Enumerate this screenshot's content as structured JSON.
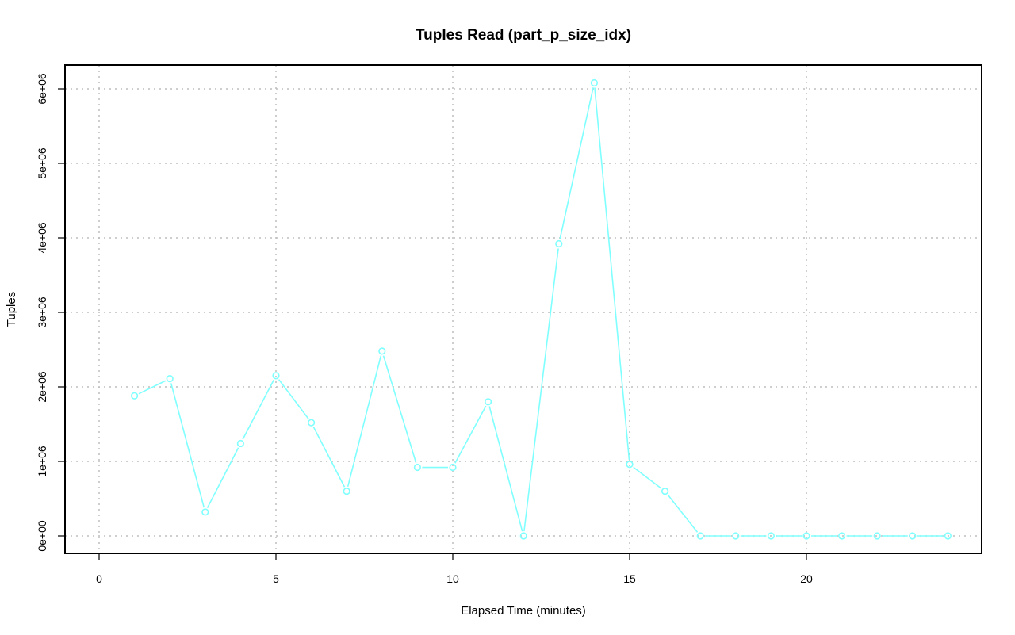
{
  "chart_data": {
    "type": "line",
    "title": "Tuples Read (part_p_size_idx)",
    "xlabel": "Elapsed Time (minutes)",
    "ylabel": "Tuples",
    "xlim": [
      0,
      24
    ],
    "ylim": [
      0,
      6000000
    ],
    "x_ticks": [
      0,
      5,
      10,
      15,
      20
    ],
    "y_ticks": [
      0,
      1000000,
      2000000,
      3000000,
      4000000,
      5000000,
      6000000
    ],
    "y_tick_labels": [
      "0e+00",
      "1e+06",
      "2e+06",
      "3e+06",
      "4e+06",
      "5e+06",
      "6e+06"
    ],
    "grid": true,
    "color": "#80ffff",
    "series": [
      {
        "x": [
          1,
          2,
          3,
          4,
          5,
          6,
          7,
          8,
          9,
          10,
          11,
          12,
          13,
          14,
          15,
          16,
          17,
          18,
          19,
          20,
          21,
          22,
          23,
          24
        ],
        "values": [
          1880000,
          2110000,
          320000,
          1240000,
          2150000,
          1520000,
          600000,
          2480000,
          920000,
          920000,
          1800000,
          0,
          3920000,
          6080000,
          960000,
          600000,
          0,
          0,
          0,
          0,
          0,
          0,
          0,
          0
        ]
      }
    ]
  }
}
